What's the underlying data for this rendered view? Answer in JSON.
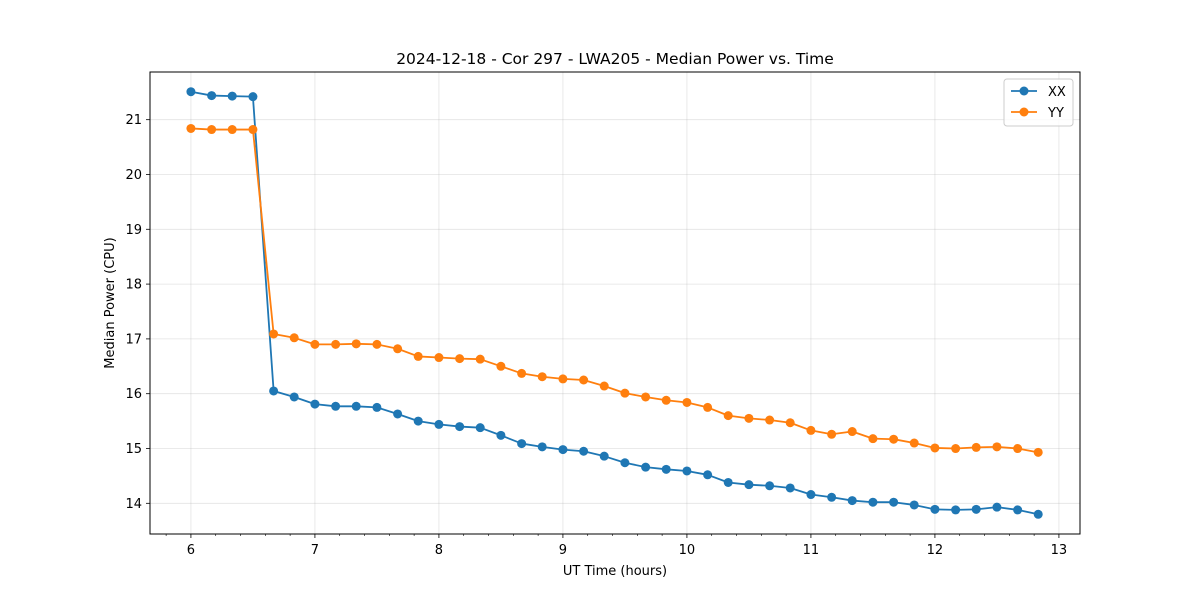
{
  "chart_data": {
    "type": "line",
    "title": "2024-12-18 - Cor 297 - LWA205 - Median Power vs. Time",
    "xlabel": "UT Time (hours)",
    "ylabel": "Median Power (CPU)",
    "xlim": [
      5.67,
      13.17
    ],
    "ylim": [
      13.44,
      21.87
    ],
    "xticks": [
      6,
      7,
      8,
      9,
      10,
      11,
      12,
      13
    ],
    "yticks": [
      14,
      15,
      16,
      17,
      18,
      19,
      20,
      21
    ],
    "grid": true,
    "legend_position": "top-right",
    "x": [
      6.0,
      6.167,
      6.333,
      6.5,
      6.667,
      6.833,
      7.0,
      7.167,
      7.333,
      7.5,
      7.667,
      7.833,
      8.0,
      8.167,
      8.333,
      8.5,
      8.667,
      8.833,
      9.0,
      9.167,
      9.333,
      9.5,
      9.667,
      9.833,
      10.0,
      10.167,
      10.333,
      10.5,
      10.667,
      10.833,
      11.0,
      11.167,
      11.333,
      11.5,
      11.667,
      11.833,
      12.0,
      12.167,
      12.333,
      12.5,
      12.667,
      12.833
    ],
    "series": [
      {
        "name": "XX",
        "color": "#1f77b4",
        "values": [
          21.51,
          21.44,
          21.43,
          21.42,
          16.05,
          15.94,
          15.81,
          15.77,
          15.77,
          15.75,
          15.63,
          15.5,
          15.44,
          15.4,
          15.38,
          15.24,
          15.09,
          15.03,
          14.98,
          14.95,
          14.86,
          14.74,
          14.66,
          14.62,
          14.59,
          14.52,
          14.38,
          14.34,
          14.32,
          14.28,
          14.16,
          14.11,
          14.05,
          14.02,
          14.02,
          13.97,
          13.89,
          13.88,
          13.89,
          13.93,
          13.88,
          13.8
        ]
      },
      {
        "name": "YY",
        "color": "#ff7f0e",
        "values": [
          20.84,
          20.82,
          20.82,
          20.82,
          17.09,
          17.02,
          16.9,
          16.9,
          16.91,
          16.9,
          16.82,
          16.68,
          16.66,
          16.64,
          16.63,
          16.5,
          16.37,
          16.31,
          16.27,
          16.25,
          16.14,
          16.01,
          15.94,
          15.88,
          15.84,
          15.75,
          15.6,
          15.55,
          15.52,
          15.47,
          15.33,
          15.26,
          15.31,
          15.18,
          15.17,
          15.1,
          15.01,
          15.0,
          15.02,
          15.03,
          15.0,
          14.93
        ]
      }
    ]
  }
}
